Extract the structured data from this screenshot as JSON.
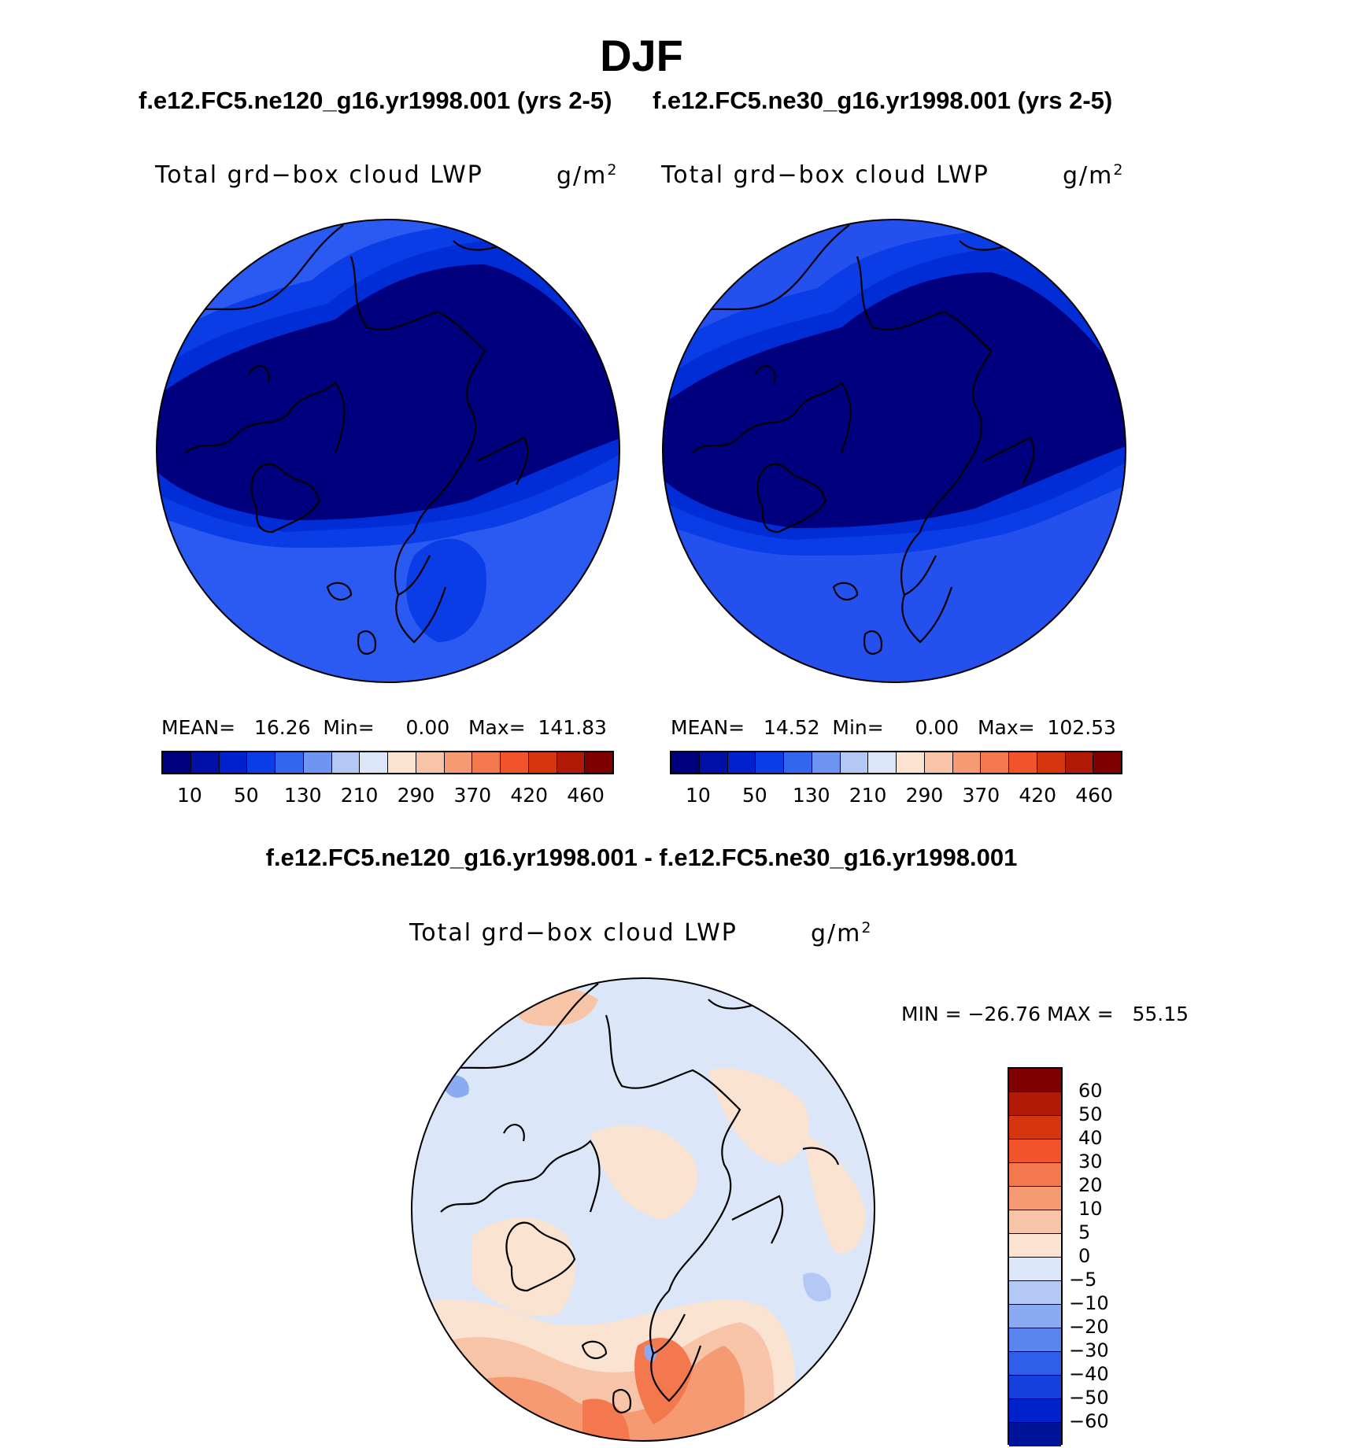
{
  "title": "DJF",
  "panels": {
    "left": {
      "case": "f.e12.FC5.ne120_g16.yr1998.001 (yrs 2-5)",
      "variable": "Total grd−box cloud LWP",
      "units_base": "g/m",
      "units_exp": "2",
      "stats": "MEAN=   16.26  Min=     0.00   Max=  141.83",
      "field_colors": [
        "#00007f",
        "#001bb0",
        "#002dd6",
        "#0a3de6",
        "#1a52ee",
        "#2a5af2"
      ]
    },
    "right": {
      "case": "f.e12.FC5.ne30_g16.yr1998.001 (yrs 2-5)",
      "variable": "Total grd−box cloud LWP",
      "units_base": "g/m",
      "units_exp": "2",
      "stats": "MEAN=   14.52  Min=     0.00   Max=  102.53",
      "field_colors": [
        "#00007f",
        "#001bb0",
        "#002dd6",
        "#0a3de6",
        "#1a52ee",
        "#2a5af2"
      ]
    },
    "diff": {
      "title": "f.e12.FC5.ne120_g16.yr1998.001 - f.e12.FC5.ne30_g16.yr1998.001",
      "variable": "Total grd−box cloud LWP",
      "units_base": "g/m",
      "units_exp": "2",
      "stats": "MIN = −26.76 MAX =   55.15"
    }
  },
  "colorbar_abs": {
    "colors": [
      "#00007f",
      "#0010a6",
      "#0022cc",
      "#0a3de6",
      "#3366ee",
      "#6f95f2",
      "#b3c8f5",
      "#dbe6f8",
      "#fbe3d2",
      "#f7c4a8",
      "#f59a72",
      "#f4784e",
      "#f1532a",
      "#d7350f",
      "#b11a06",
      "#800000"
    ],
    "tick_labels": [
      "10",
      "50",
      "130",
      "210",
      "290",
      "370",
      "420",
      "460"
    ]
  },
  "colorbar_diff": {
    "colors_top_to_bottom": [
      "#800000",
      "#b11a06",
      "#d7350f",
      "#f1532a",
      "#f4784e",
      "#f59a72",
      "#f7c4a8",
      "#fbe3d2",
      "#dbe6f8",
      "#b3c8f5",
      "#8aaaf2",
      "#5a85ee",
      "#2f5ee8",
      "#1540dd",
      "#0022cc",
      "#001499"
    ],
    "labels": [
      "60",
      "50",
      "40",
      "30",
      "20",
      "10",
      "5",
      "0",
      "−5",
      "−10",
      "−20",
      "−30",
      "−40",
      "−50",
      "−60"
    ]
  }
}
